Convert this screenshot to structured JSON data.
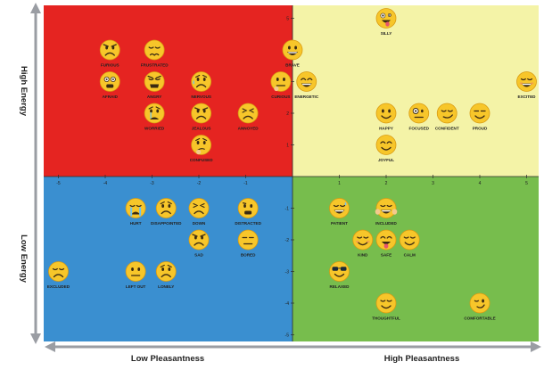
{
  "colors": {
    "high_unpleasant": "#e52421",
    "high_pleasant": "#f4f3a7",
    "low_unpleasant": "#3a8fd0",
    "low_pleasant": "#77bd4d",
    "arrow": "#9a9da3",
    "emoji_face": "#f7c62a",
    "emoji_edge": "#d99b12"
  },
  "axes": {
    "y_top_label": "High Energy",
    "y_bottom_label": "Low Energy",
    "x_left_label": "Low Pleasantness",
    "x_right_label": "High Pleasantness",
    "x_ticks_negative": [
      "-5",
      "-4",
      "-3",
      "-2",
      "-1"
    ],
    "x_ticks_positive": [
      "1",
      "2",
      "3",
      "4",
      "5"
    ],
    "y_ticks_positive": [
      "5",
      "4",
      "3",
      "2",
      "1"
    ],
    "y_ticks_negative": [
      "-1",
      "-2",
      "-3",
      "-4",
      "-5"
    ]
  },
  "emotions": [
    {
      "label": "FURIOUS",
      "pleasantness": -3.9,
      "energy": 4.0,
      "face": "furious"
    },
    {
      "label": "FRUSTRATED",
      "pleasantness": -2.95,
      "energy": 4.0,
      "face": "frustrated"
    },
    {
      "label": "AFRAID",
      "pleasantness": -3.9,
      "energy": 3.0,
      "face": "afraid"
    },
    {
      "label": "ANGRY",
      "pleasantness": -2.95,
      "energy": 3.0,
      "face": "angry"
    },
    {
      "label": "NERVOUS",
      "pleasantness": -1.95,
      "energy": 3.0,
      "face": "nervous"
    },
    {
      "label": "WORRIED",
      "pleasantness": -2.95,
      "energy": 2.0,
      "face": "worried"
    },
    {
      "label": "JEALOUS",
      "pleasantness": -1.95,
      "energy": 2.0,
      "face": "jealous"
    },
    {
      "label": "ANNOYED",
      "pleasantness": -0.95,
      "energy": 2.0,
      "face": "annoyed"
    },
    {
      "label": "CONFUSED",
      "pleasantness": -1.95,
      "energy": 1.0,
      "face": "confused"
    },
    {
      "label": "SILLY",
      "pleasantness": 2.0,
      "energy": 5.0,
      "face": "silly"
    },
    {
      "label": "BRAVE",
      "pleasantness": 0.0,
      "energy": 4.0,
      "face": "brave"
    },
    {
      "label": "CURIOUS",
      "pleasantness": -0.25,
      "energy": 3.0,
      "face": "curious"
    },
    {
      "label": "ENERGETIC",
      "pleasantness": 0.3,
      "energy": 3.0,
      "face": "energetic"
    },
    {
      "label": "EXCITED",
      "pleasantness": 5.0,
      "energy": 3.0,
      "face": "excited"
    },
    {
      "label": "HAPPY",
      "pleasantness": 2.0,
      "energy": 2.0,
      "face": "happy"
    },
    {
      "label": "FOCUSED",
      "pleasantness": 2.7,
      "energy": 2.0,
      "face": "focused"
    },
    {
      "label": "CONFIDENT",
      "pleasantness": 3.3,
      "energy": 2.0,
      "face": "confident"
    },
    {
      "label": "PROUD",
      "pleasantness": 4.0,
      "energy": 2.0,
      "face": "proud"
    },
    {
      "label": "JOYFUL",
      "pleasantness": 2.0,
      "energy": 1.0,
      "face": "joyful"
    },
    {
      "label": "HURT",
      "pleasantness": -3.35,
      "energy": -1.0,
      "face": "hurt"
    },
    {
      "label": "DISAPPOINTED",
      "pleasantness": -2.7,
      "energy": -1.0,
      "face": "disappointed"
    },
    {
      "label": "DOWN",
      "pleasantness": -2.0,
      "energy": -1.0,
      "face": "down"
    },
    {
      "label": "DISTRACTED",
      "pleasantness": -0.95,
      "energy": -1.0,
      "face": "distracted"
    },
    {
      "label": "SAD",
      "pleasantness": -2.0,
      "energy": -2.0,
      "face": "sad"
    },
    {
      "label": "BORED",
      "pleasantness": -0.95,
      "energy": -2.0,
      "face": "bored"
    },
    {
      "label": "EXCLUDED",
      "pleasantness": -5.0,
      "energy": -3.0,
      "face": "excluded"
    },
    {
      "label": "LEFT OUT",
      "pleasantness": -3.35,
      "energy": -3.0,
      "face": "left-out"
    },
    {
      "label": "LONELY",
      "pleasantness": -2.7,
      "energy": -3.0,
      "face": "lonely"
    },
    {
      "label": "PATIENT",
      "pleasantness": 1.0,
      "energy": -1.0,
      "face": "patient"
    },
    {
      "label": "INCLUDED",
      "pleasantness": 2.0,
      "energy": -1.0,
      "face": "included"
    },
    {
      "label": "KIND",
      "pleasantness": 1.5,
      "energy": -2.0,
      "face": "kind"
    },
    {
      "label": "SAFE",
      "pleasantness": 2.0,
      "energy": -2.0,
      "face": "safe"
    },
    {
      "label": "CALM",
      "pleasantness": 2.5,
      "energy": -2.0,
      "face": "calm"
    },
    {
      "label": "RELAXED",
      "pleasantness": 1.0,
      "energy": -3.0,
      "face": "relaxed"
    },
    {
      "label": "THOUGHTFUL",
      "pleasantness": 2.0,
      "energy": -4.0,
      "face": "thoughtful"
    },
    {
      "label": "COMFORTABLE",
      "pleasantness": 4.0,
      "energy": -4.0,
      "face": "comfortable"
    }
  ]
}
